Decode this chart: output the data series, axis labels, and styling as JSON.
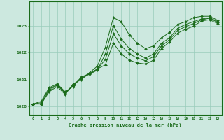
{
  "background_color": "#cce8df",
  "grid_color": "#99ccbb",
  "line_color": "#1a6b1a",
  "marker": "D",
  "marker_size": 2,
  "xlabel": "Graphe pression niveau de la mer (hPa)",
  "xlim": [
    -0.5,
    23.5
  ],
  "ylim": [
    1019.7,
    1023.9
  ],
  "yticks": [
    1020,
    1021,
    1022,
    1023
  ],
  "xticks": [
    0,
    1,
    2,
    3,
    4,
    5,
    6,
    7,
    8,
    9,
    10,
    11,
    12,
    13,
    14,
    15,
    16,
    17,
    18,
    19,
    20,
    21,
    22,
    23
  ],
  "series": [
    [
      1020.1,
      1020.1,
      1020.55,
      1020.75,
      1020.45,
      1020.85,
      1021.0,
      1021.25,
      1021.5,
      1022.2,
      1023.3,
      1023.15,
      1022.65,
      1022.35,
      1022.15,
      1022.25,
      1022.55,
      1022.75,
      1023.05,
      1023.15,
      1023.3,
      1023.35,
      1023.35,
      1023.2
    ],
    [
      1020.1,
      1020.1,
      1020.6,
      1020.8,
      1020.5,
      1020.8,
      1021.05,
      1021.2,
      1021.35,
      1021.95,
      1023.0,
      1022.5,
      1022.15,
      1021.95,
      1021.8,
      1021.95,
      1022.35,
      1022.55,
      1022.9,
      1023.05,
      1023.15,
      1023.25,
      1023.3,
      1023.15
    ],
    [
      1020.1,
      1020.15,
      1020.65,
      1020.82,
      1020.52,
      1020.78,
      1021.08,
      1021.22,
      1021.38,
      1021.75,
      1022.7,
      1022.25,
      1021.95,
      1021.8,
      1021.7,
      1021.85,
      1022.25,
      1022.48,
      1022.82,
      1022.97,
      1023.08,
      1023.22,
      1023.28,
      1023.12
    ],
    [
      1020.1,
      1020.2,
      1020.7,
      1020.85,
      1020.55,
      1020.75,
      1021.1,
      1021.22,
      1021.4,
      1021.55,
      1022.35,
      1021.95,
      1021.72,
      1021.62,
      1021.58,
      1021.72,
      1022.15,
      1022.4,
      1022.72,
      1022.87,
      1022.98,
      1023.18,
      1023.22,
      1023.08
    ]
  ]
}
